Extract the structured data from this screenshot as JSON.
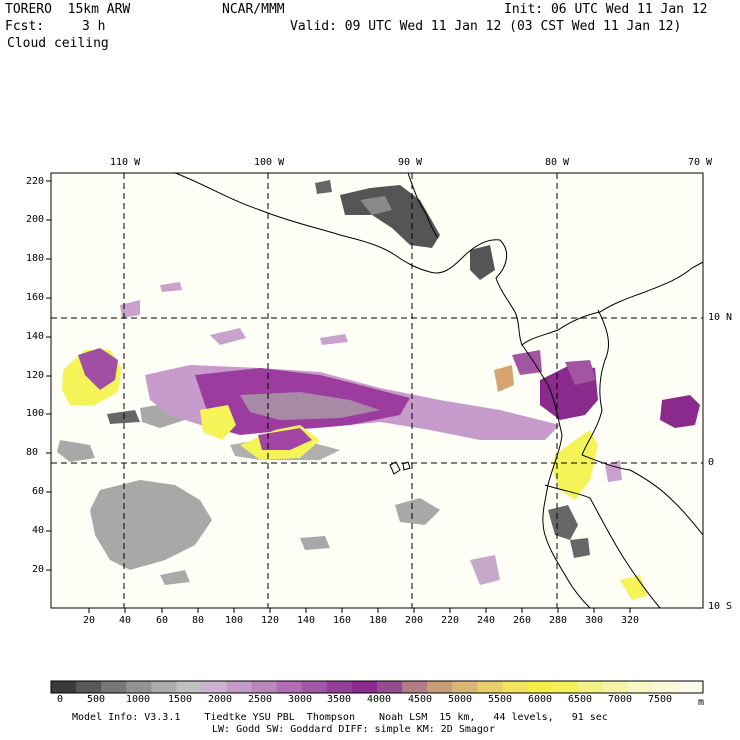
{
  "header": {
    "model": "TORERO  15km ARW",
    "center": "NCAR/MMM",
    "init": "Init: 06 UTC Wed 11 Jan 12",
    "fcst_label": "Fcst:",
    "fcst_value": "3 h",
    "valid": "Valid: 09 UTC Wed 11 Jan 12 (03 CST Wed 11 Jan 12)",
    "field": "Cloud ceiling"
  },
  "map": {
    "lon_labels": [
      "110 W",
      "100 W",
      "90 W",
      "80 W",
      "70 W"
    ],
    "lat_labels": [
      "10 N",
      "0",
      "10 S"
    ],
    "y_ticks": [
      "220",
      "200",
      "180",
      "160",
      "140",
      "120",
      "100",
      "80",
      "60",
      "40",
      "20"
    ],
    "x_ticks": [
      "20",
      "40",
      "60",
      "80",
      "100",
      "120",
      "140",
      "160",
      "180",
      "200",
      "220",
      "240",
      "260",
      "280",
      "300",
      "320"
    ],
    "colors": {
      "gray": "#a3a3a3",
      "dark": "#555555",
      "lavender": "#c8a2cc",
      "purple": "#a155a3",
      "deep": "#8a2a8c",
      "yellow": "#f4f454",
      "tan": "#d6a470",
      "land": "#ffffff",
      "ocean": "#fffff7"
    }
  },
  "colorbar": {
    "labels": [
      "0",
      "500",
      "1000",
      "1500",
      "2000",
      "2500",
      "3000",
      "3500",
      "4000",
      "4500",
      "5000",
      "5500",
      "6000",
      "6500",
      "7000",
      "7500"
    ],
    "unit": "m",
    "colors": [
      "#3b3b3b",
      "#595959",
      "#777777",
      "#929292",
      "#ababab",
      "#c0c0c0",
      "#ccb3cf",
      "#c59cc9",
      "#bb86be",
      "#b06db3",
      "#a257a6",
      "#943f98",
      "#8a2a8c",
      "#974c92",
      "#b27d84",
      "#c99c78",
      "#d9b772",
      "#e8cf6b",
      "#f2e25c",
      "#f5ee4b",
      "#f3f05a",
      "#f2f183",
      "#f4f4a8",
      "#f7f7c6",
      "#fafad9",
      "#fbfbea"
    ]
  },
  "footer": {
    "line1": "Model Info: V3.3.1    Tiedtke YSU PBL  Thompson    Noah LSM  15 km,   44 levels,   91 sec",
    "line2": "LW: Godd SW: Goddard DIFF: simple KM: 2D Smagor"
  }
}
